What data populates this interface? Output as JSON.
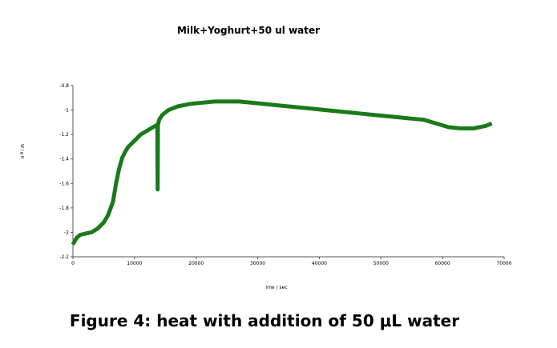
{
  "caption": "Figure 4: heat with addition of 50 μL water",
  "chart_data": {
    "type": "line",
    "title": "Milk+Yoghurt+50 ul water",
    "xlabel": "ime / sec",
    "ylabel": "W / g H",
    "xlim": [
      0,
      70000
    ],
    "ylim": [
      -2.2,
      -0.8
    ],
    "xticks": [
      0,
      10000,
      20000,
      30000,
      40000,
      50000,
      60000,
      70000
    ],
    "xtick_labels": [
      "0",
      "10000",
      "20000",
      "30000",
      "40000",
      "50000",
      "60000",
      "70000"
    ],
    "yticks": [
      -0.8,
      -1,
      -1.2,
      -1.4,
      -1.6,
      -1.8,
      -2,
      -2.2
    ],
    "ytick_labels": [
      "-0.8",
      "-1",
      "-1.2",
      "-1.4",
      "-1.6",
      "-1.8",
      "-2",
      "-2.2"
    ],
    "grid": false,
    "line_color": "#1a7a1a",
    "series": [
      {
        "x": [
          0,
          300,
          700,
          1200,
          2000,
          3000,
          4000,
          5000,
          5700,
          6500,
          7000,
          7500,
          8000,
          8500,
          9000,
          10000,
          11000,
          12000,
          13000,
          13700,
          13750,
          13800,
          14000,
          14500,
          15500,
          17000,
          19000,
          21000,
          23000,
          25000,
          27000,
          29000,
          31000,
          33000,
          35000,
          37000,
          39000,
          41000,
          43000,
          45000,
          47000,
          49000,
          51000,
          53000,
          55000,
          57000,
          59000,
          61000,
          63000,
          65000,
          67000,
          68000
        ],
        "y": [
          -2.1,
          -2.07,
          -2.04,
          -2.02,
          -2.01,
          -2.0,
          -1.97,
          -1.92,
          -1.86,
          -1.75,
          -1.6,
          -1.48,
          -1.39,
          -1.34,
          -1.3,
          -1.25,
          -1.2,
          -1.17,
          -1.14,
          -1.12,
          -1.65,
          -1.12,
          -1.08,
          -1.04,
          -1.0,
          -0.97,
          -0.95,
          -0.94,
          -0.93,
          -0.93,
          -0.93,
          -0.94,
          -0.95,
          -0.96,
          -0.97,
          -0.98,
          -0.99,
          -1.0,
          -1.01,
          -1.02,
          -1.03,
          -1.04,
          -1.05,
          -1.06,
          -1.07,
          -1.08,
          -1.11,
          -1.14,
          -1.15,
          -1.15,
          -1.13,
          -1.11
        ]
      }
    ]
  }
}
